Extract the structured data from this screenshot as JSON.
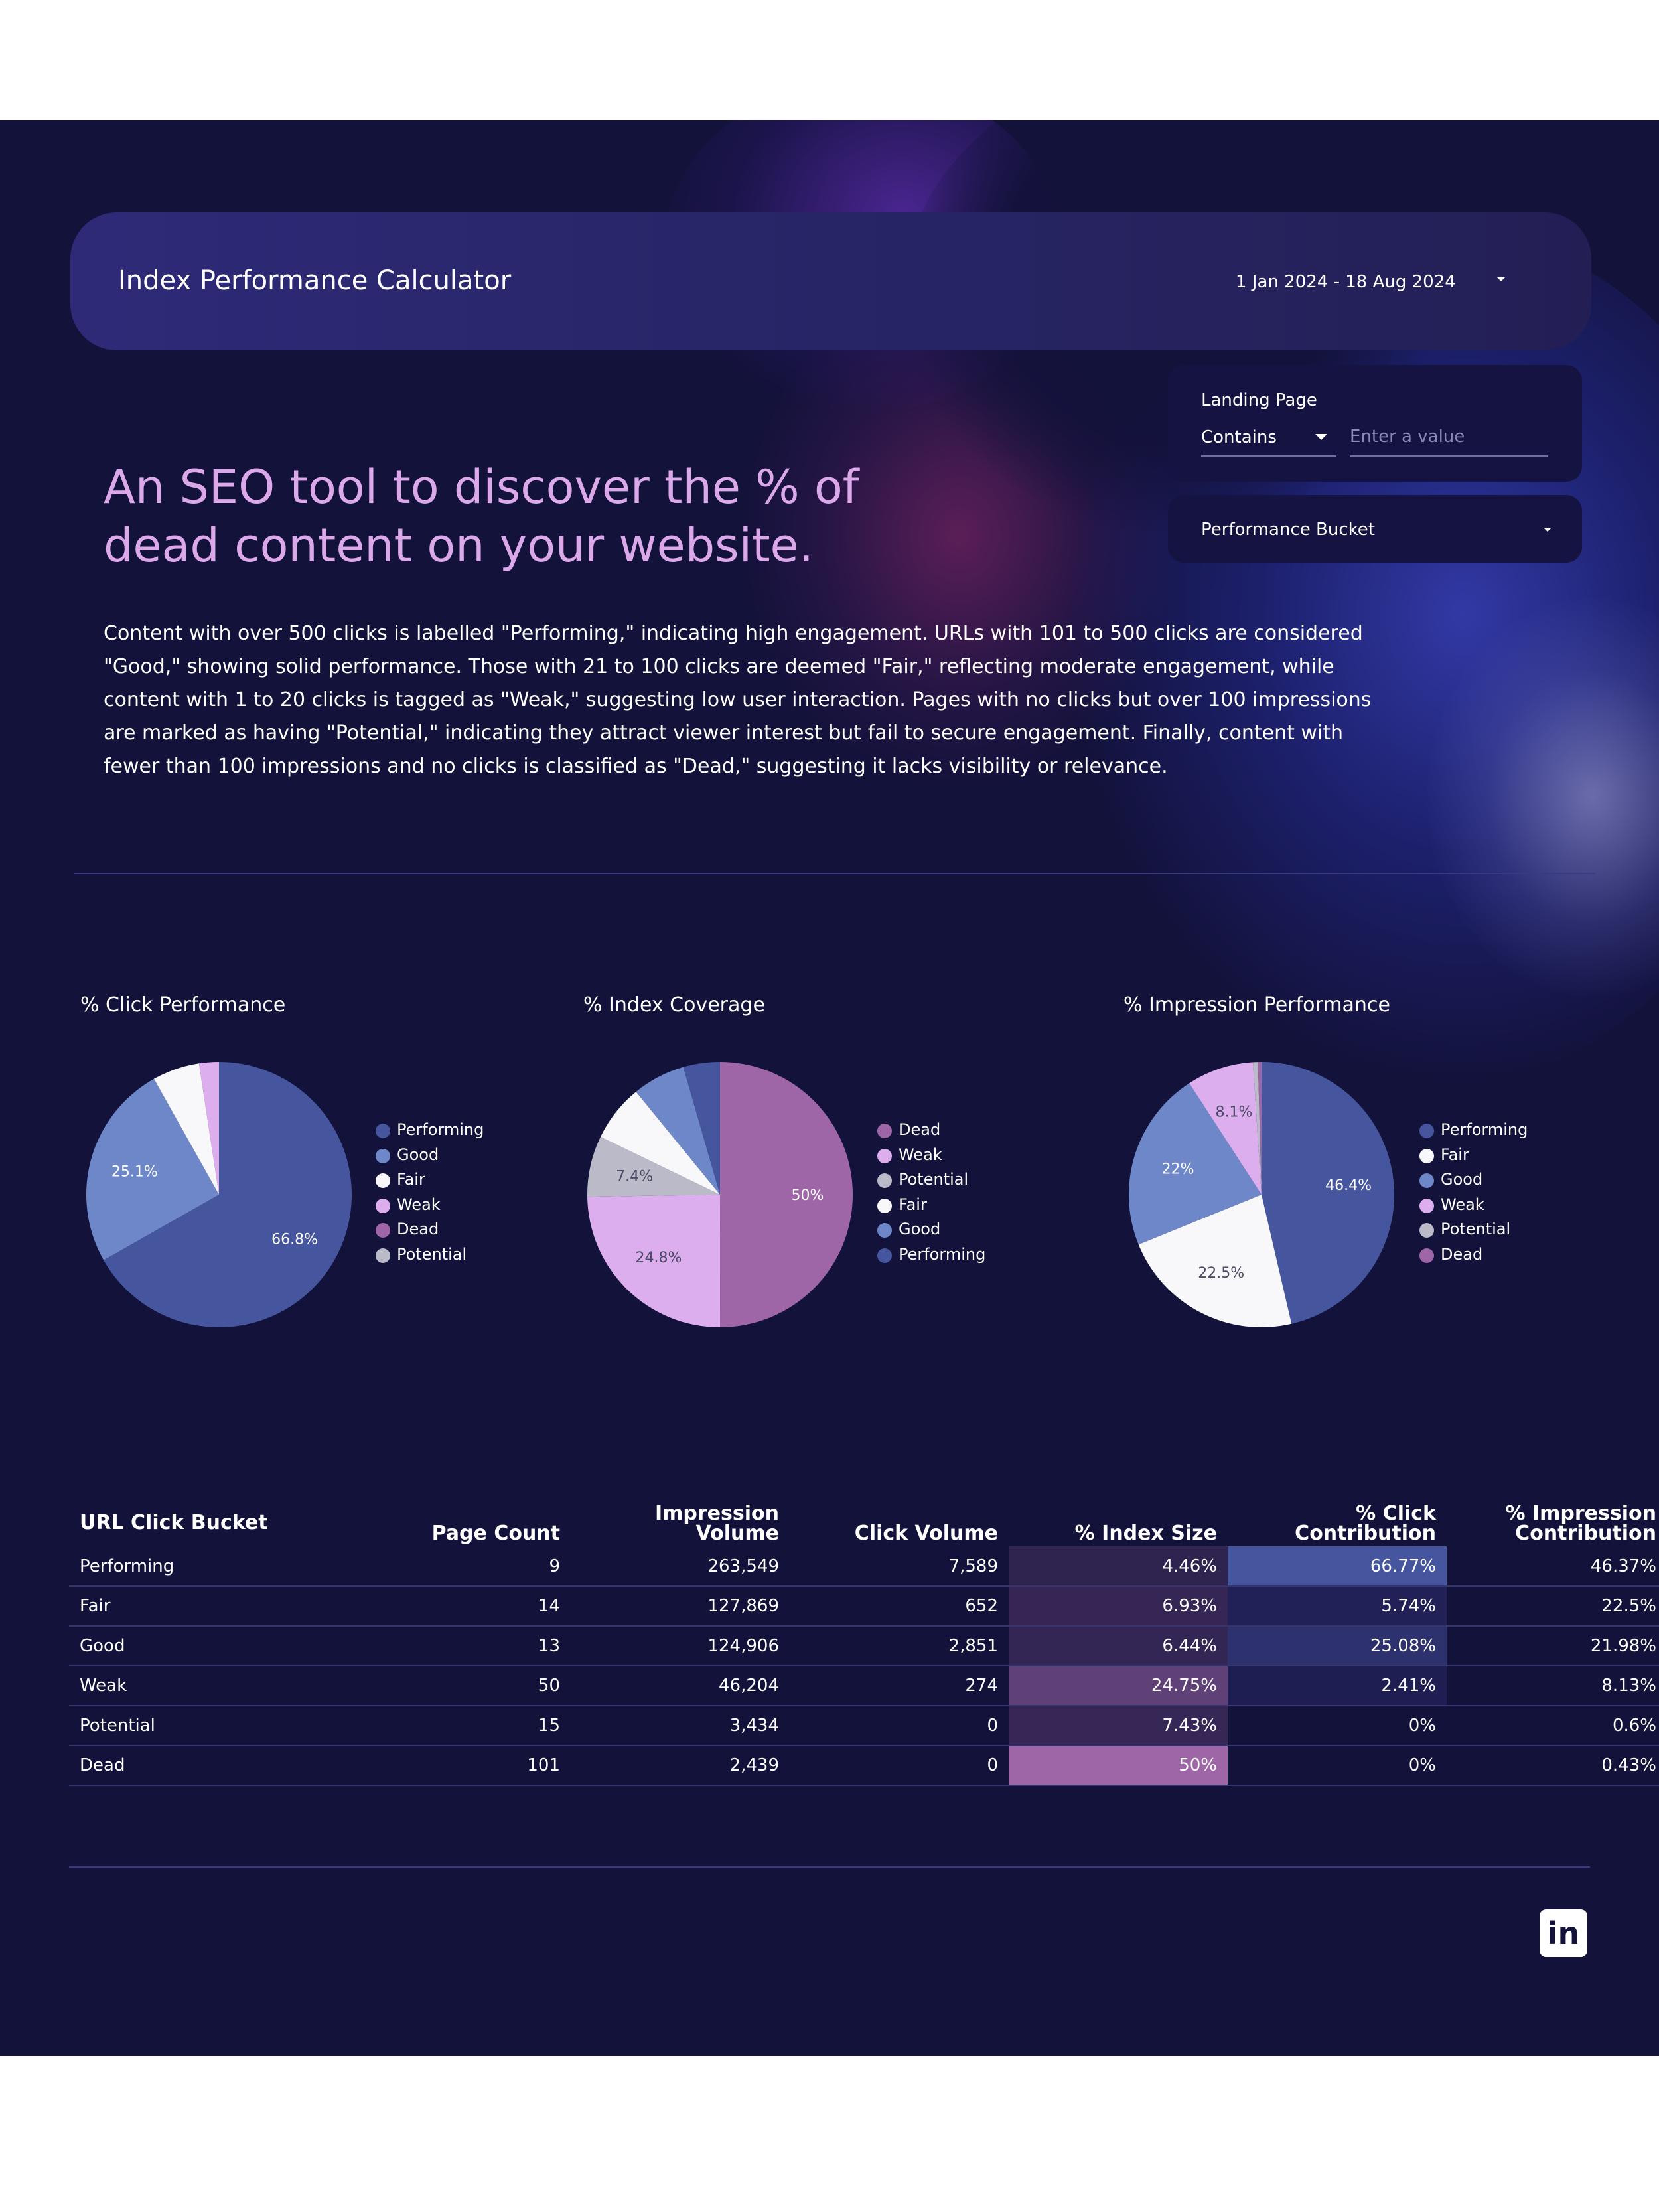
{
  "header": {
    "title": "Index Performance Calculator",
    "date_range": "1 Jan 2024 - 18 Aug 2024"
  },
  "filters": {
    "landing_page_label": "Landing Page",
    "match_type": "Contains",
    "value_placeholder": "Enter a value",
    "performance_bucket_label": "Performance Bucket"
  },
  "intro": {
    "headline_line1": "An SEO tool to discover the % of",
    "headline_line2": "dead content on your website.",
    "description": "Content with over 500 clicks is labelled \"Performing,\" indicating high engagement. URLs with 101 to 500 clicks are considered \"Good,\" showing solid performance. Those with 21 to 100 clicks are deemed \"Fair,\" reflecting moderate engagement, while content with 1 to 20 clicks is tagged as \"Weak,\" suggesting low user interaction. Pages with no clicks but over 100 impressions are marked as having \"Potential,\" indicating they attract viewer interest but fail to secure engagement. Finally, content with fewer than 100 impressions and no clicks is classified as \"Dead,\" suggesting it lacks visibility or relevance."
  },
  "colors": {
    "Performing": "#45559e",
    "Good": "#6d87c8",
    "Fair": "#f8f8fa",
    "Weak": "#dcaeee",
    "Dead": "#9e66a7",
    "Potential": "#babac8"
  },
  "chart_data": [
    {
      "type": "pie",
      "title": "% Click Performance",
      "legend_position": "right",
      "slices": [
        {
          "name": "Performing",
          "value": 66.77,
          "label": "66.8%"
        },
        {
          "name": "Good",
          "value": 25.08,
          "label": "25.1%"
        },
        {
          "name": "Fair",
          "value": 5.74,
          "label": ""
        },
        {
          "name": "Weak",
          "value": 2.41,
          "label": ""
        },
        {
          "name": "Dead",
          "value": 0,
          "label": ""
        },
        {
          "name": "Potential",
          "value": 0,
          "label": ""
        }
      ]
    },
    {
      "type": "pie",
      "title": "% Index Coverage",
      "legend_position": "right",
      "slices": [
        {
          "name": "Dead",
          "value": 50,
          "label": "50%"
        },
        {
          "name": "Weak",
          "value": 24.75,
          "label": "24.8%"
        },
        {
          "name": "Potential",
          "value": 7.43,
          "label": "7.4%"
        },
        {
          "name": "Fair",
          "value": 6.93,
          "label": ""
        },
        {
          "name": "Good",
          "value": 6.44,
          "label": ""
        },
        {
          "name": "Performing",
          "value": 4.46,
          "label": ""
        }
      ]
    },
    {
      "type": "pie",
      "title": "% Impression Performance",
      "legend_position": "right",
      "slices": [
        {
          "name": "Performing",
          "value": 46.37,
          "label": "46.4%"
        },
        {
          "name": "Fair",
          "value": 22.5,
          "label": "22.5%"
        },
        {
          "name": "Good",
          "value": 21.98,
          "label": "22%"
        },
        {
          "name": "Weak",
          "value": 8.13,
          "label": "8.1%"
        },
        {
          "name": "Potential",
          "value": 0.6,
          "label": ""
        },
        {
          "name": "Dead",
          "value": 0.43,
          "label": ""
        }
      ]
    },
    {
      "type": "table",
      "columns": [
        "URL Click Bucket",
        "Page Count",
        "Impression Volume",
        "Click Volume",
        "% Index Size",
        "% Click Contribution",
        "% Impression Contribution"
      ],
      "heatmap_columns": [
        4,
        5
      ],
      "rows": [
        [
          "Performing",
          "9",
          "263,549",
          "7,589",
          "4.46%",
          "66.77%",
          "46.37%"
        ],
        [
          "Fair",
          "14",
          "127,869",
          "652",
          "6.93%",
          "5.74%",
          "22.5%"
        ],
        [
          "Good",
          "13",
          "124,906",
          "2,851",
          "6.44%",
          "25.08%",
          "21.98%"
        ],
        [
          "Weak",
          "50",
          "46,204",
          "274",
          "24.75%",
          "2.41%",
          "8.13%"
        ],
        [
          "Potential",
          "15",
          "3,434",
          "0",
          "7.43%",
          "0%",
          "0.6%"
        ],
        [
          "Dead",
          "101",
          "2,439",
          "0",
          "50%",
          "0%",
          "0.43%"
        ]
      ]
    }
  ],
  "footer": {
    "social_icon": "linkedin-icon",
    "social_text": "in"
  }
}
